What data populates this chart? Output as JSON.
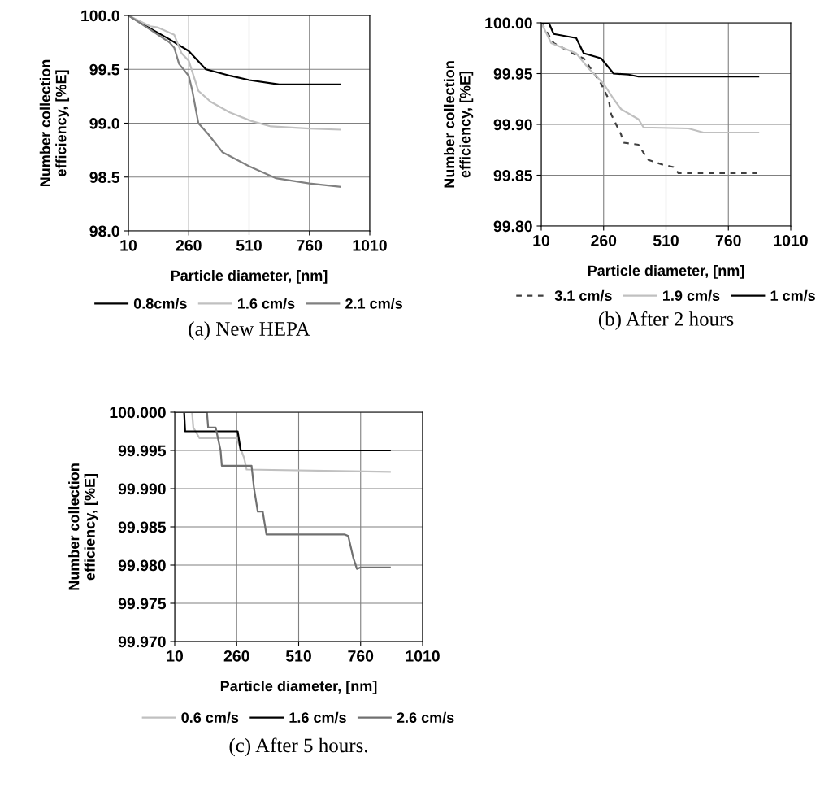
{
  "chart_data": [
    {
      "type": "line",
      "title": "(a) New HEPA",
      "xlabel": "Particle diameter, [nm]",
      "ylabel": "Number collection efficiency, [%E]",
      "xlim": [
        10,
        1010
      ],
      "xticks": [
        10,
        260,
        510,
        760,
        1010
      ],
      "ylim": [
        98.0,
        100.0
      ],
      "yticks": [
        {
          "value": 98.0,
          "label": "98.0"
        },
        {
          "value": 98.5,
          "label": "98.5"
        },
        {
          "value": 99.0,
          "label": "99.0"
        },
        {
          "value": 99.5,
          "label": "99.5"
        },
        {
          "value": 100.0,
          "label": "100.0"
        }
      ],
      "grid": true,
      "legend": "bottom",
      "series": [
        {
          "name": "0.8cm/s",
          "color": "#000000",
          "x": [
            10,
            100,
            179,
            260,
            331,
            432,
            511,
            635,
            888
          ],
          "values": [
            100.0,
            99.88,
            99.78,
            99.67,
            99.5,
            99.44,
            99.4,
            99.36,
            99.36
          ]
        },
        {
          "name": "1.6 cm/s",
          "color": "#c0c0c0",
          "x": [
            10,
            100,
            130,
            200,
            230,
            260,
            300,
            350,
            430,
            520,
            600,
            760,
            888
          ],
          "values": [
            100.0,
            99.9,
            99.89,
            99.82,
            99.65,
            99.58,
            99.3,
            99.2,
            99.1,
            99.02,
            98.97,
            98.95,
            98.94
          ]
        },
        {
          "name": "2.1 cm/s",
          "color": "#808080",
          "x": [
            10,
            100,
            180,
            200,
            220,
            260,
            275,
            300,
            340,
            400,
            510,
            620,
            760,
            888
          ],
          "values": [
            100.0,
            99.87,
            99.75,
            99.7,
            99.55,
            99.44,
            99.3,
            99.0,
            98.9,
            98.73,
            98.6,
            98.49,
            98.44,
            98.41
          ]
        }
      ]
    },
    {
      "type": "line",
      "title": "(b) After 2 hours",
      "xlabel": "Particle diameter, [nm]",
      "ylabel": "Number collection efficiency, [%E]",
      "xlim": [
        10,
        1010
      ],
      "xticks": [
        10,
        260,
        510,
        760,
        1010
      ],
      "ylim": [
        99.8,
        100.0
      ],
      "yticks": [
        {
          "value": 99.8,
          "label": "99.80"
        },
        {
          "value": 99.85,
          "label": "99.85"
        },
        {
          "value": 99.9,
          "label": "99.90"
        },
        {
          "value": 99.95,
          "label": "99.95"
        },
        {
          "value": 100.0,
          "label": "100.00"
        }
      ],
      "grid": true,
      "legend": "bottom",
      "series": [
        {
          "name": "3.1 cm/s",
          "color": "#404040",
          "line_style": "dashed",
          "x": [
            10,
            60,
            150,
            180,
            250,
            280,
            290,
            310,
            330,
            340,
            400,
            420,
            440,
            500,
            540,
            560,
            880
          ],
          "values": [
            100.0,
            99.98,
            99.968,
            99.965,
            99.94,
            99.925,
            99.91,
            99.9,
            99.89,
            99.882,
            99.88,
            99.872,
            99.865,
            99.86,
            99.858,
            99.852,
            99.852
          ]
        },
        {
          "name": "1.9 cm/s",
          "color": "#c0c0c0",
          "x": [
            10,
            50,
            150,
            200,
            260,
            300,
            330,
            400,
            420,
            600,
            660,
            880
          ],
          "values": [
            100.0,
            99.98,
            99.97,
            99.955,
            99.94,
            99.925,
            99.915,
            99.905,
            99.897,
            99.896,
            99.892,
            99.892
          ]
        },
        {
          "name": "1 cm/s",
          "color": "#000000",
          "x": [
            10,
            40,
            60,
            150,
            180,
            250,
            300,
            360,
            400,
            880
          ],
          "values": [
            100.0,
            100.0,
            99.989,
            99.985,
            99.97,
            99.965,
            99.95,
            99.949,
            99.947,
            99.947
          ]
        }
      ]
    },
    {
      "type": "line",
      "title": "(c) After 5 hours.",
      "xlabel": "Particle diameter, [nm]",
      "ylabel": "Number collection efficiency, [%E]",
      "xlim": [
        10,
        1010
      ],
      "xticks": [
        10,
        260,
        510,
        760,
        1010
      ],
      "ylim": [
        99.97,
        100.0
      ],
      "yticks": [
        {
          "value": 99.97,
          "label": "99.970"
        },
        {
          "value": 99.975,
          "label": "99.975"
        },
        {
          "value": 99.98,
          "label": "99.980"
        },
        {
          "value": 99.985,
          "label": "99.985"
        },
        {
          "value": 99.99,
          "label": "99.990"
        },
        {
          "value": 99.995,
          "label": "99.995"
        },
        {
          "value": 100.0,
          "label": "100.000"
        }
      ],
      "grid": true,
      "legend": "bottom",
      "series": [
        {
          "name": "0.6 cm/s",
          "color": "#c0c0c0",
          "x": [
            10,
            80,
            85,
            110,
            260,
            290,
            300,
            878
          ],
          "values": [
            100.0,
            100.0,
            99.998,
            99.9966,
            99.9966,
            99.994,
            99.9925,
            99.9922
          ]
        },
        {
          "name": "1.6 cm/s",
          "color": "#000000",
          "x": [
            10,
            48,
            52,
            264,
            276,
            878
          ],
          "values": [
            100.0,
            100.0,
            99.9975,
            99.9975,
            99.995,
            99.995
          ]
        },
        {
          "name": "2.6 cm/s",
          "color": "#707070",
          "x": [
            10,
            140,
            145,
            175,
            195,
            200,
            320,
            330,
            345,
            365,
            380,
            695,
            710,
            730,
            745,
            760,
            878
          ],
          "values": [
            100.0,
            100.0,
            99.998,
            99.998,
            99.995,
            99.993,
            99.993,
            99.99,
            99.987,
            99.987,
            99.984,
            99.984,
            99.9838,
            99.981,
            99.9795,
            99.9797,
            99.9797
          ]
        }
      ]
    }
  ]
}
